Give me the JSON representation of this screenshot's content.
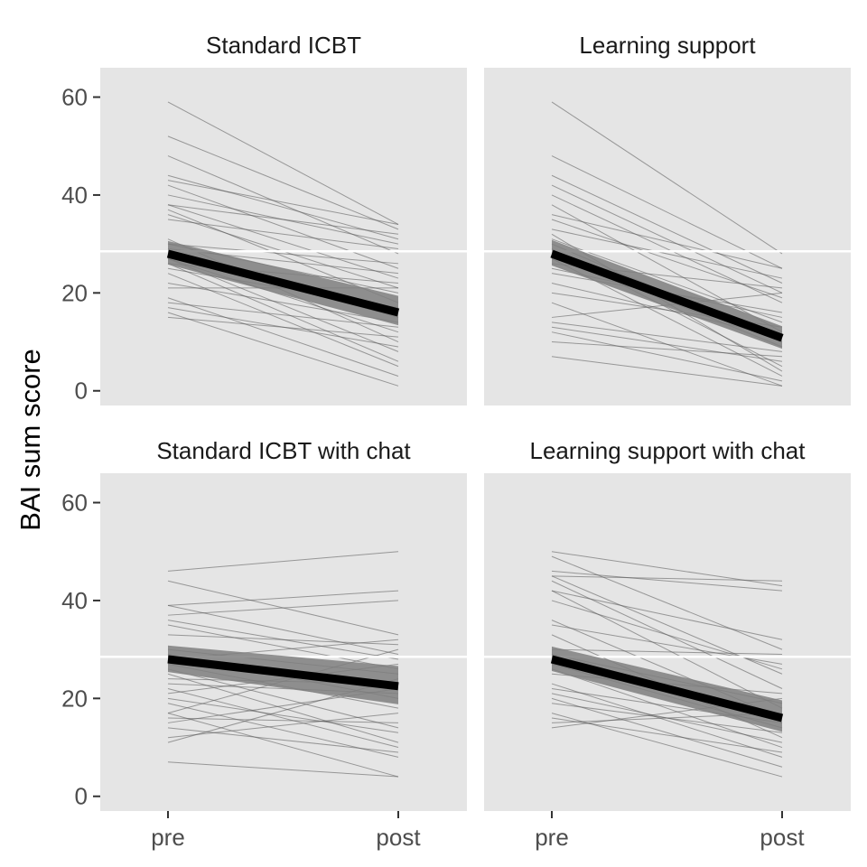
{
  "chart_data": {
    "type": "line",
    "ylabel": "BAI sum score",
    "xlabel": "",
    "x_categories": [
      "pre",
      "post"
    ],
    "ylim": [
      -3,
      66
    ],
    "y_ticks": [
      0,
      20,
      40,
      60
    ],
    "grid": false,
    "legend": "none",
    "reference_line_y": 28.5,
    "colors": {
      "panel_bg": "#e5e5e5",
      "individual_line": "#555555",
      "mean_line": "#000000",
      "ribbon": "#7f7f7f",
      "reference_line": "#ffffff"
    },
    "panels": [
      {
        "title": "Standard ICBT",
        "mean": {
          "pre": 28,
          "post": 16
        },
        "ci": {
          "pre": [
            25.8,
            30.6
          ],
          "post": [
            13.4,
            19.4
          ]
        },
        "individuals": [
          [
            59,
            34
          ],
          [
            52,
            33
          ],
          [
            48,
            28
          ],
          [
            44,
            31
          ],
          [
            43,
            34
          ],
          [
            42,
            25
          ],
          [
            40,
            30
          ],
          [
            38,
            23
          ],
          [
            38,
            32
          ],
          [
            37,
            18
          ],
          [
            36,
            21
          ],
          [
            35,
            29
          ],
          [
            31,
            10
          ],
          [
            30,
            26
          ],
          [
            30,
            20
          ],
          [
            29,
            24
          ],
          [
            28,
            15
          ],
          [
            27,
            8
          ],
          [
            27,
            12
          ],
          [
            26,
            22
          ],
          [
            26,
            6
          ],
          [
            25,
            17
          ],
          [
            24,
            5
          ],
          [
            22,
            14
          ],
          [
            21,
            21
          ],
          [
            19,
            3
          ],
          [
            18,
            13
          ],
          [
            17,
            9
          ],
          [
            16,
            1
          ],
          [
            15,
            11
          ]
        ]
      },
      {
        "title": "Learning support",
        "mean": {
          "pre": 28,
          "post": 10.8
        },
        "ci": {
          "pre": [
            25.6,
            30.8
          ],
          "post": [
            8.6,
            13.2
          ]
        },
        "individuals": [
          [
            59,
            28
          ],
          [
            48,
            25
          ],
          [
            44,
            22
          ],
          [
            42,
            20
          ],
          [
            40,
            18
          ],
          [
            38,
            12
          ],
          [
            36,
            25
          ],
          [
            35,
            19
          ],
          [
            33,
            23
          ],
          [
            31,
            14
          ],
          [
            30,
            10
          ],
          [
            29,
            5
          ],
          [
            28,
            9
          ],
          [
            27,
            3
          ],
          [
            26,
            21
          ],
          [
            24,
            16
          ],
          [
            22,
            11
          ],
          [
            20,
            13
          ],
          [
            18,
            1
          ],
          [
            15,
            20
          ],
          [
            14,
            8
          ],
          [
            13,
            6
          ],
          [
            12,
            2
          ],
          [
            10,
            7
          ],
          [
            7,
            1
          ],
          [
            32,
            4
          ],
          [
            25,
            15
          ]
        ]
      },
      {
        "title": "Standard ICBT with chat",
        "mean": {
          "pre": 28,
          "post": 22.5
        },
        "ci": {
          "pre": [
            25.4,
            30.8
          ],
          "post": [
            18.8,
            26.6
          ]
        },
        "individuals": [
          [
            46,
            50
          ],
          [
            44,
            33
          ],
          [
            39,
            42
          ],
          [
            37,
            40
          ],
          [
            36,
            28
          ],
          [
            35,
            26
          ],
          [
            33,
            31
          ],
          [
            30,
            25
          ],
          [
            29,
            20
          ],
          [
            28,
            32
          ],
          [
            27,
            18
          ],
          [
            26,
            14
          ],
          [
            25,
            11
          ],
          [
            24,
            23
          ],
          [
            23,
            21
          ],
          [
            22,
            10
          ],
          [
            21,
            27
          ],
          [
            20,
            13
          ],
          [
            19,
            8
          ],
          [
            17,
            30
          ],
          [
            17,
            4
          ],
          [
            16,
            15
          ],
          [
            15,
            22
          ],
          [
            14,
            9
          ],
          [
            12,
            17
          ],
          [
            11,
            24
          ],
          [
            7,
            4
          ],
          [
            39,
            29
          ]
        ]
      },
      {
        "title": "Learning support with chat",
        "mean": {
          "pre": 28,
          "post": 16
        },
        "ci": {
          "pre": [
            25.6,
            30.6
          ],
          "post": [
            13.2,
            19.6
          ]
        },
        "individuals": [
          [
            50,
            43
          ],
          [
            49,
            30
          ],
          [
            46,
            42
          ],
          [
            45,
            25
          ],
          [
            45,
            44
          ],
          [
            44,
            22
          ],
          [
            42,
            32
          ],
          [
            42,
            18
          ],
          [
            40,
            26
          ],
          [
            36,
            16
          ],
          [
            35,
            27
          ],
          [
            33,
            12
          ],
          [
            30,
            29
          ],
          [
            29,
            19
          ],
          [
            27,
            14
          ],
          [
            26,
            10
          ],
          [
            25,
            21
          ],
          [
            23,
            8
          ],
          [
            22,
            15
          ],
          [
            21,
            11
          ],
          [
            20,
            6
          ],
          [
            19,
            13
          ],
          [
            17,
            4
          ],
          [
            16,
            9
          ],
          [
            15,
            17
          ],
          [
            14,
            20
          ]
        ]
      }
    ]
  }
}
